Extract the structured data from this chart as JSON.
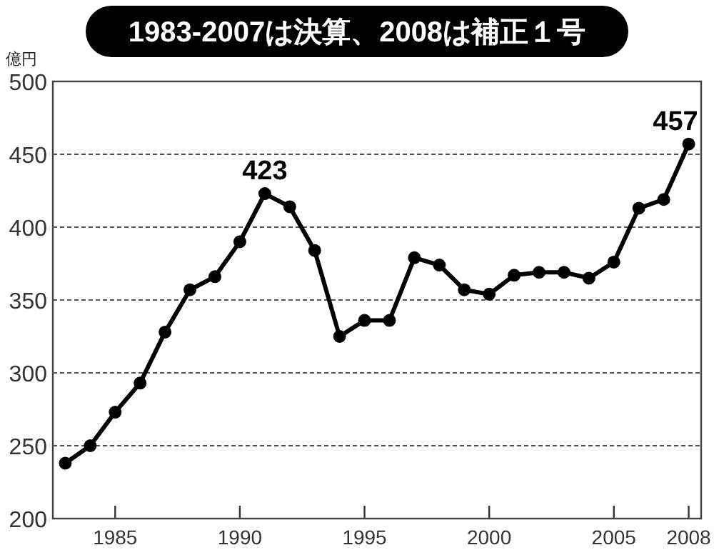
{
  "chart_data": {
    "type": "line",
    "title": "1983-2007は決算、2008は補正１号",
    "ylabel": "億円",
    "x": [
      1983,
      1984,
      1985,
      1986,
      1987,
      1988,
      1989,
      1990,
      1991,
      1992,
      1993,
      1994,
      1995,
      1996,
      1997,
      1998,
      1999,
      2000,
      2001,
      2002,
      2003,
      2004,
      2005,
      2006,
      2007,
      2008
    ],
    "series": [
      {
        "color": "#000000",
        "values": [
          238,
          250,
          273,
          293,
          328,
          357,
          366,
          390,
          423,
          414,
          384,
          325,
          336,
          336,
          379,
          374,
          357,
          354,
          367,
          369,
          369,
          365,
          376,
          413,
          419,
          457
        ]
      }
    ],
    "xlim": [
      1982.5,
      2008.5
    ],
    "xticks": [
      1985,
      1990,
      1995,
      2000,
      2005,
      2008
    ],
    "ylim": [
      200,
      500
    ],
    "yticks": [
      200,
      250,
      300,
      350,
      400,
      450,
      500
    ],
    "grid": "y",
    "marker": "circle",
    "line_style": "solid",
    "annotations": [
      {
        "text": "423",
        "x": 1991,
        "y": 423
      },
      {
        "text": "457",
        "x": 2008,
        "y": 457
      }
    ]
  }
}
